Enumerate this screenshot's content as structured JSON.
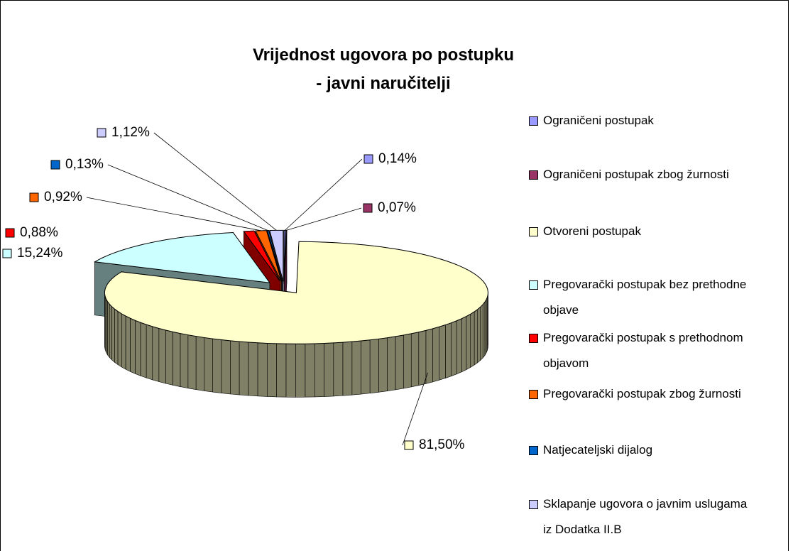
{
  "chart_data": {
    "type": "pie3d",
    "title": "Vrijednost ugovora po postupku\n- javni naručitelji",
    "categories": [
      "Ograničeni postupak",
      "Ograničeni postupak zbog žurnosti",
      "Otvoreni postupak",
      "Pregovarački postupak bez prethodne objave",
      "Pregovarački postupak s prethodnom objavom",
      "Pregovarački postupak zbog žurnosti",
      "Natjecateljski dijalog",
      "Sklapanje ugovora o javnim uslugama iz Dodatka II.B"
    ],
    "values": [
      0.14,
      0.07,
      81.5,
      15.24,
      0.88,
      0.92,
      0.13,
      1.12
    ],
    "value_labels": [
      "0,14%",
      "0,07%",
      "81,50%",
      "15,24%",
      "0,88%",
      "0,92%",
      "0,13%",
      "1,12%"
    ],
    "colors": [
      "#9999ff",
      "#993366",
      "#ffffcc",
      "#ccffff",
      "#ff0000",
      "#ff6600",
      "#0066cc",
      "#ccccff"
    ],
    "legend": "right"
  }
}
